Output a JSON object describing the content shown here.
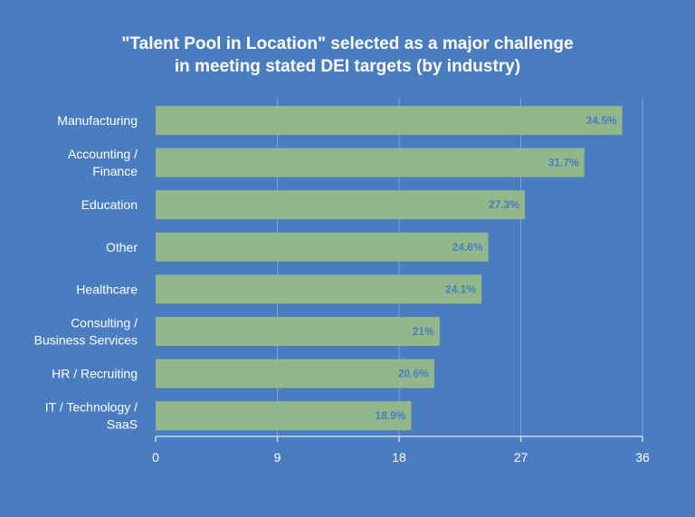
{
  "chart_data": {
    "type": "bar",
    "orientation": "horizontal",
    "title_lines": [
      "\"Talent Pool in Location\" selected as a major challenge",
      "in meeting stated DEI targets (by industry)"
    ],
    "categories": [
      [
        "Manufacturing"
      ],
      [
        "Accounting /",
        "Finance"
      ],
      [
        "Education"
      ],
      [
        "Other"
      ],
      [
        "Healthcare"
      ],
      [
        "Consulting /",
        "Business Services"
      ],
      [
        "HR / Recruiting"
      ],
      [
        "IT / Technology /",
        "SaaS"
      ]
    ],
    "values": [
      34.5,
      31.7,
      27.3,
      24.6,
      24.1,
      21,
      20.6,
      18.9
    ],
    "data_labels": [
      "34.5%",
      "31.7%",
      "27.3%",
      "24.6%",
      "24.1%",
      "21%",
      "20.6%",
      "18.9%"
    ],
    "xlim": [
      0,
      36
    ],
    "xticks": [
      0,
      9,
      18,
      27,
      36
    ],
    "grid": true,
    "colors": {
      "background": "#4a7dc0",
      "bar": "#92b78b",
      "label": "#4a7dc0",
      "grid": "#7fa3d6",
      "axis": "#c9d6ea"
    }
  }
}
